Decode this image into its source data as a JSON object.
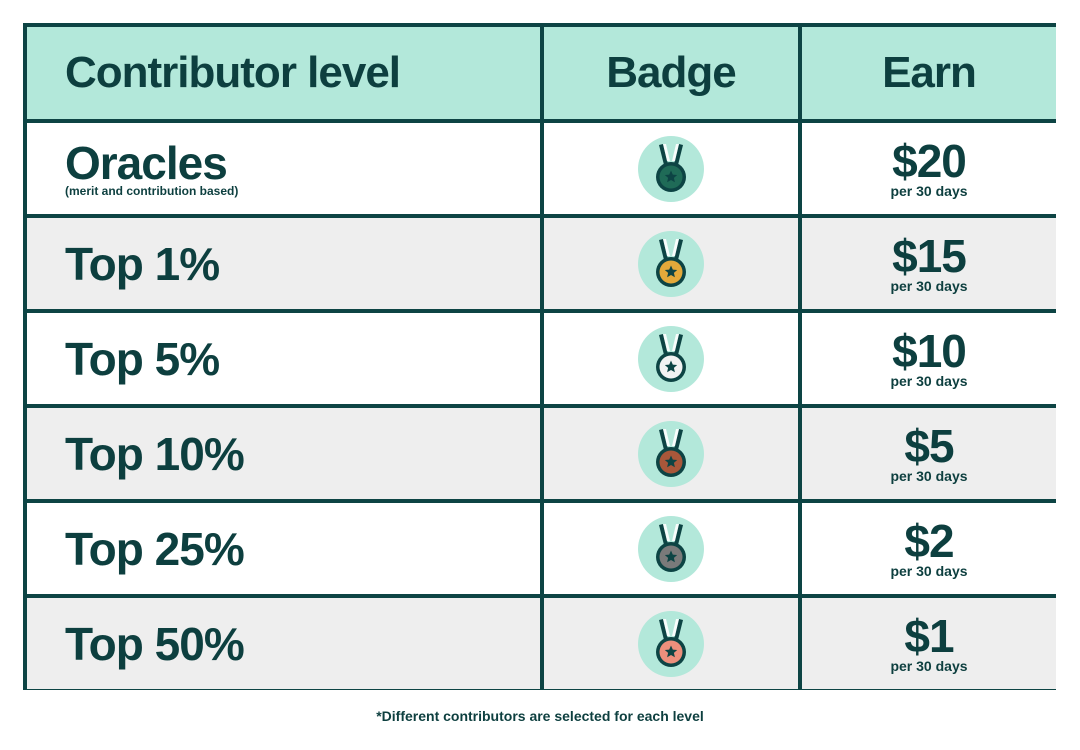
{
  "header": {
    "level_label": "Contributor level",
    "badge_label": "Badge",
    "earn_label": "Earn"
  },
  "rows": [
    {
      "level": "Oracles",
      "level_note": "(merit and contribution based)",
      "badge_icon": "medal-icon",
      "medal_color": "#1f6b57",
      "amount": "$20",
      "period": "per 30 days",
      "bg": "white"
    },
    {
      "level": "Top 1%",
      "level_note": "",
      "badge_icon": "medal-icon",
      "medal_color": "#e3a93a",
      "amount": "$15",
      "period": "per 30 days",
      "bg": "gray"
    },
    {
      "level": "Top 5%",
      "level_note": "",
      "badge_icon": "medal-icon",
      "medal_color": "#f2f2f2",
      "amount": "$10",
      "period": "per 30 days",
      "bg": "white"
    },
    {
      "level": "Top 10%",
      "level_note": "",
      "badge_icon": "medal-icon",
      "medal_color": "#a9573a",
      "amount": "$5",
      "period": "per 30 days",
      "bg": "gray"
    },
    {
      "level": "Top 25%",
      "level_note": "",
      "badge_icon": "medal-icon",
      "medal_color": "#7a7a7a",
      "amount": "$2",
      "period": "per 30 days",
      "bg": "white"
    },
    {
      "level": "Top 50%",
      "level_note": "",
      "badge_icon": "medal-icon",
      "medal_color": "#ec8f7c",
      "amount": "$1",
      "period": "per 30 days",
      "bg": "gray"
    }
  ],
  "footnote": "*Different contributors are selected for each level",
  "colors": {
    "header_bg": "#b3e8da",
    "border": "#0d4444",
    "text": "#0d3f3f",
    "badge_circle": "#b3e8da"
  }
}
